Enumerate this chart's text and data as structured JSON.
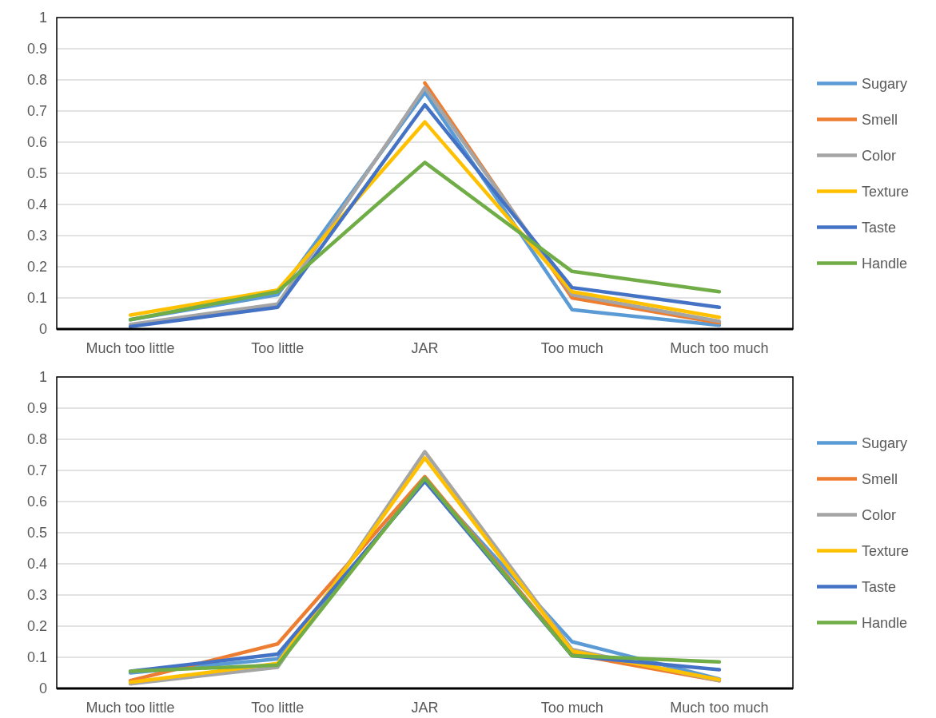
{
  "chart_data": [
    {
      "type": "line",
      "categories": [
        "Much too little",
        "Too little",
        "JAR",
        "Too much",
        "Much too much"
      ],
      "ylim": [
        0,
        1
      ],
      "yticks": [
        0,
        0.1,
        0.2,
        0.3,
        0.4,
        0.5,
        0.6,
        0.7,
        0.8,
        0.9,
        1
      ],
      "grid": "y",
      "legend": "right",
      "marker": "none",
      "line_style": "solid",
      "series": [
        {
          "name": "Sugary",
          "color": "#5b9bd5",
          "values": [
            0.03,
            0.11,
            0.76,
            0.062,
            0.012
          ]
        },
        {
          "name": "Smell",
          "color": "#ed7d31",
          "values": [
            null,
            null,
            0.79,
            0.1,
            0.02
          ]
        },
        {
          "name": "Color",
          "color": "#a5a5a5",
          "values": [
            0.015,
            0.08,
            0.775,
            0.11,
            0.025
          ]
        },
        {
          "name": "Texture",
          "color": "#ffc000",
          "values": [
            0.045,
            0.125,
            0.665,
            0.12,
            0.038
          ]
        },
        {
          "name": "Taste",
          "color": "#4472c4",
          "values": [
            0.008,
            0.07,
            0.72,
            0.133,
            0.07
          ]
        },
        {
          "name": "Handle",
          "color": "#70ad47",
          "values": [
            0.03,
            0.12,
            0.535,
            0.185,
            0.12
          ]
        }
      ]
    },
    {
      "type": "line",
      "categories": [
        "Much too little",
        "Too little",
        "JAR",
        "Too much",
        "Much too much"
      ],
      "ylim": [
        0,
        1
      ],
      "yticks": [
        0,
        0.1,
        0.2,
        0.3,
        0.4,
        0.5,
        0.6,
        0.7,
        0.8,
        0.9,
        1
      ],
      "grid": "y",
      "legend": "right",
      "marker": "none",
      "line_style": "solid",
      "series": [
        {
          "name": "Sugary",
          "color": "#5b9bd5",
          "values": [
            0.05,
            0.095,
            0.67,
            0.15,
            0.03
          ]
        },
        {
          "name": "Smell",
          "color": "#ed7d31",
          "values": [
            0.025,
            0.143,
            0.68,
            0.11,
            0.025
          ]
        },
        {
          "name": "Color",
          "color": "#a5a5a5",
          "values": [
            0.015,
            0.068,
            0.76,
            0.125,
            0.025
          ]
        },
        {
          "name": "Texture",
          "color": "#ffc000",
          "values": [
            0.02,
            0.08,
            0.74,
            0.12,
            0.028
          ]
        },
        {
          "name": "Taste",
          "color": "#4472c4",
          "values": [
            0.055,
            0.11,
            0.665,
            0.105,
            0.06
          ]
        },
        {
          "name": "Handle",
          "color": "#70ad47",
          "values": [
            0.055,
            0.075,
            0.675,
            0.105,
            0.085
          ]
        }
      ]
    }
  ]
}
